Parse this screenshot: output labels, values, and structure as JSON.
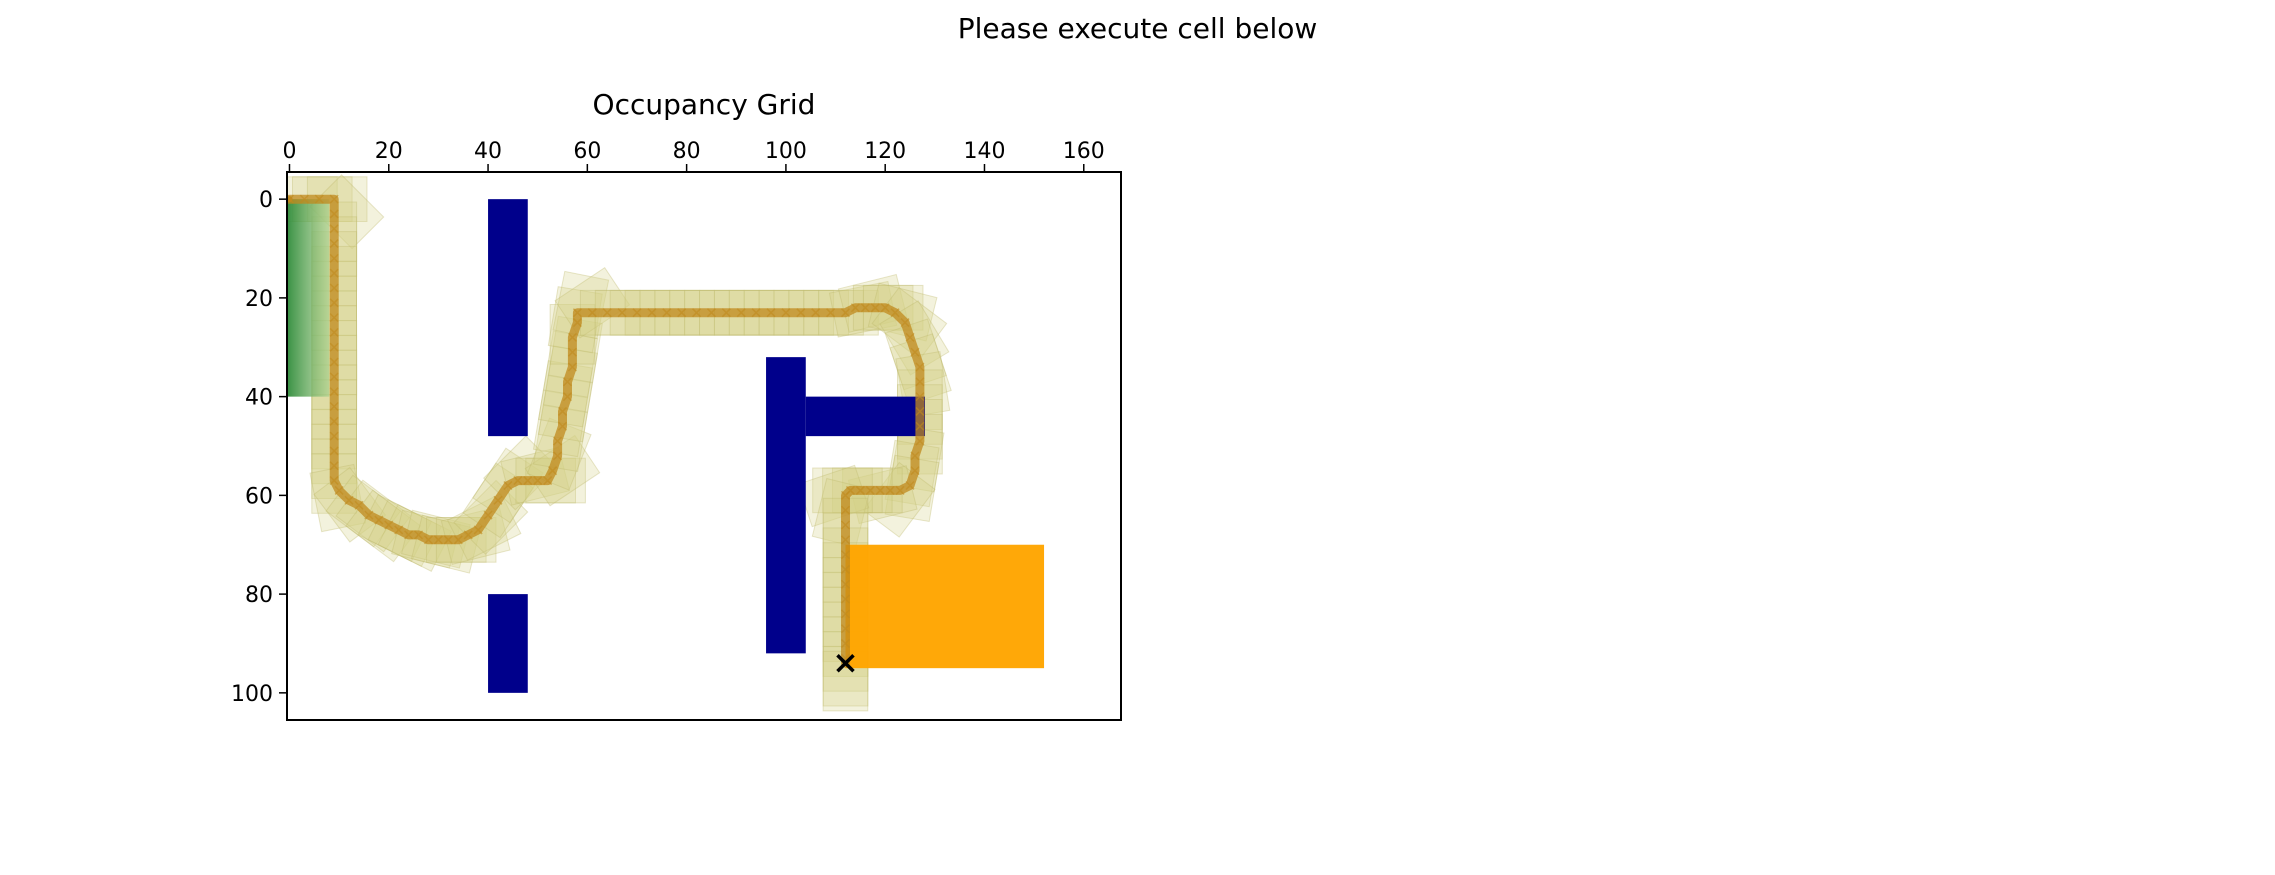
{
  "figure": {
    "suptitle": "Please execute cell below"
  },
  "colors": {
    "obstacle": "#00008b",
    "goal": "#ffa500",
    "swept": "#d4cf84",
    "swept_edge": "#bdb76b",
    "path": "#c08a1e",
    "start_region": "#4caf50",
    "marker": "#000000"
  },
  "chart_data": {
    "type": "heatmap",
    "title": "Occupancy Grid",
    "xlabel": "",
    "ylabel": "",
    "xlim": [
      -0.5,
      167.5
    ],
    "ylim": [
      105.5,
      -5.5
    ],
    "x_axis_position": "top",
    "y_inverted": true,
    "grid": false,
    "xticks": [
      0,
      20,
      40,
      60,
      80,
      100,
      120,
      140,
      160
    ],
    "yticks": [
      0,
      20,
      40,
      60,
      80,
      100
    ],
    "obstacles": [
      {
        "x0": 40,
        "x1": 48,
        "y0": 0,
        "y1": 48
      },
      {
        "x0": 40,
        "x1": 48,
        "y0": 80,
        "y1": 100
      },
      {
        "x0": 96,
        "x1": 104,
        "y0": 32,
        "y1": 92
      },
      {
        "x0": 104,
        "x1": 128,
        "y0": 40,
        "y1": 48
      }
    ],
    "goal_region": {
      "x0": 112,
      "x1": 152,
      "y0": 70,
      "y1": 95
    },
    "start_region": {
      "x0": -0.5,
      "x1": 8,
      "y0": 0,
      "y1": 40
    },
    "vehicle_footprint": {
      "length": 12,
      "width": 9
    },
    "path": [
      [
        0,
        0
      ],
      [
        3,
        0
      ],
      [
        6,
        0
      ],
      [
        9,
        0
      ],
      [
        9,
        3
      ],
      [
        9,
        6
      ],
      [
        9,
        9
      ],
      [
        9,
        12
      ],
      [
        9,
        15
      ],
      [
        9,
        18
      ],
      [
        9,
        21
      ],
      [
        9,
        24
      ],
      [
        9,
        27
      ],
      [
        9,
        30
      ],
      [
        9,
        33
      ],
      [
        9,
        36
      ],
      [
        9,
        39
      ],
      [
        9,
        42
      ],
      [
        9,
        45
      ],
      [
        9,
        48
      ],
      [
        9,
        51
      ],
      [
        9,
        54
      ],
      [
        9,
        57
      ],
      [
        10,
        59
      ],
      [
        12,
        61
      ],
      [
        14,
        62
      ],
      [
        16,
        64
      ],
      [
        18,
        65
      ],
      [
        20,
        66
      ],
      [
        22,
        67
      ],
      [
        24,
        68
      ],
      [
        26,
        68
      ],
      [
        28,
        69
      ],
      [
        30,
        69
      ],
      [
        32,
        69
      ],
      [
        34,
        69
      ],
      [
        36,
        68
      ],
      [
        38,
        67
      ],
      [
        40,
        64
      ],
      [
        42,
        61
      ],
      [
        44,
        58
      ],
      [
        46,
        57
      ],
      [
        48,
        57
      ],
      [
        50,
        57
      ],
      [
        52,
        57
      ],
      [
        53,
        55
      ],
      [
        54,
        52
      ],
      [
        54,
        49
      ],
      [
        55,
        46
      ],
      [
        55,
        43
      ],
      [
        56,
        40
      ],
      [
        56,
        37
      ],
      [
        57,
        34
      ],
      [
        57,
        31
      ],
      [
        57,
        28
      ],
      [
        58,
        25
      ],
      [
        58,
        23
      ],
      [
        61,
        23
      ],
      [
        64,
        23
      ],
      [
        67,
        23
      ],
      [
        70,
        23
      ],
      [
        73,
        23
      ],
      [
        76,
        23
      ],
      [
        79,
        23
      ],
      [
        82,
        23
      ],
      [
        85,
        23
      ],
      [
        88,
        23
      ],
      [
        91,
        23
      ],
      [
        94,
        23
      ],
      [
        97,
        23
      ],
      [
        100,
        23
      ],
      [
        103,
        23
      ],
      [
        106,
        23
      ],
      [
        109,
        23
      ],
      [
        112,
        23
      ],
      [
        114,
        22
      ],
      [
        116,
        22
      ],
      [
        118,
        22
      ],
      [
        120,
        22
      ],
      [
        122,
        23
      ],
      [
        124,
        25
      ],
      [
        125,
        28
      ],
      [
        126,
        31
      ],
      [
        127,
        34
      ],
      [
        127,
        37
      ],
      [
        127,
        40
      ],
      [
        127,
        43
      ],
      [
        127,
        46
      ],
      [
        127,
        49
      ],
      [
        126,
        52
      ],
      [
        126,
        55
      ],
      [
        125,
        58
      ],
      [
        123,
        59
      ],
      [
        121,
        59
      ],
      [
        119,
        59
      ],
      [
        117,
        59
      ],
      [
        115,
        59
      ],
      [
        113,
        59
      ],
      [
        112,
        60
      ],
      [
        112,
        63
      ],
      [
        112,
        66
      ],
      [
        112,
        69
      ],
      [
        112,
        72
      ],
      [
        112,
        75
      ],
      [
        112,
        78
      ],
      [
        112,
        81
      ],
      [
        112,
        84
      ],
      [
        112,
        87
      ],
      [
        112,
        90
      ],
      [
        112,
        93
      ],
      [
        112,
        94
      ]
    ],
    "start_marker": {
      "x": 0,
      "y": 0
    },
    "end_marker": {
      "x": 112,
      "y": 94
    }
  }
}
